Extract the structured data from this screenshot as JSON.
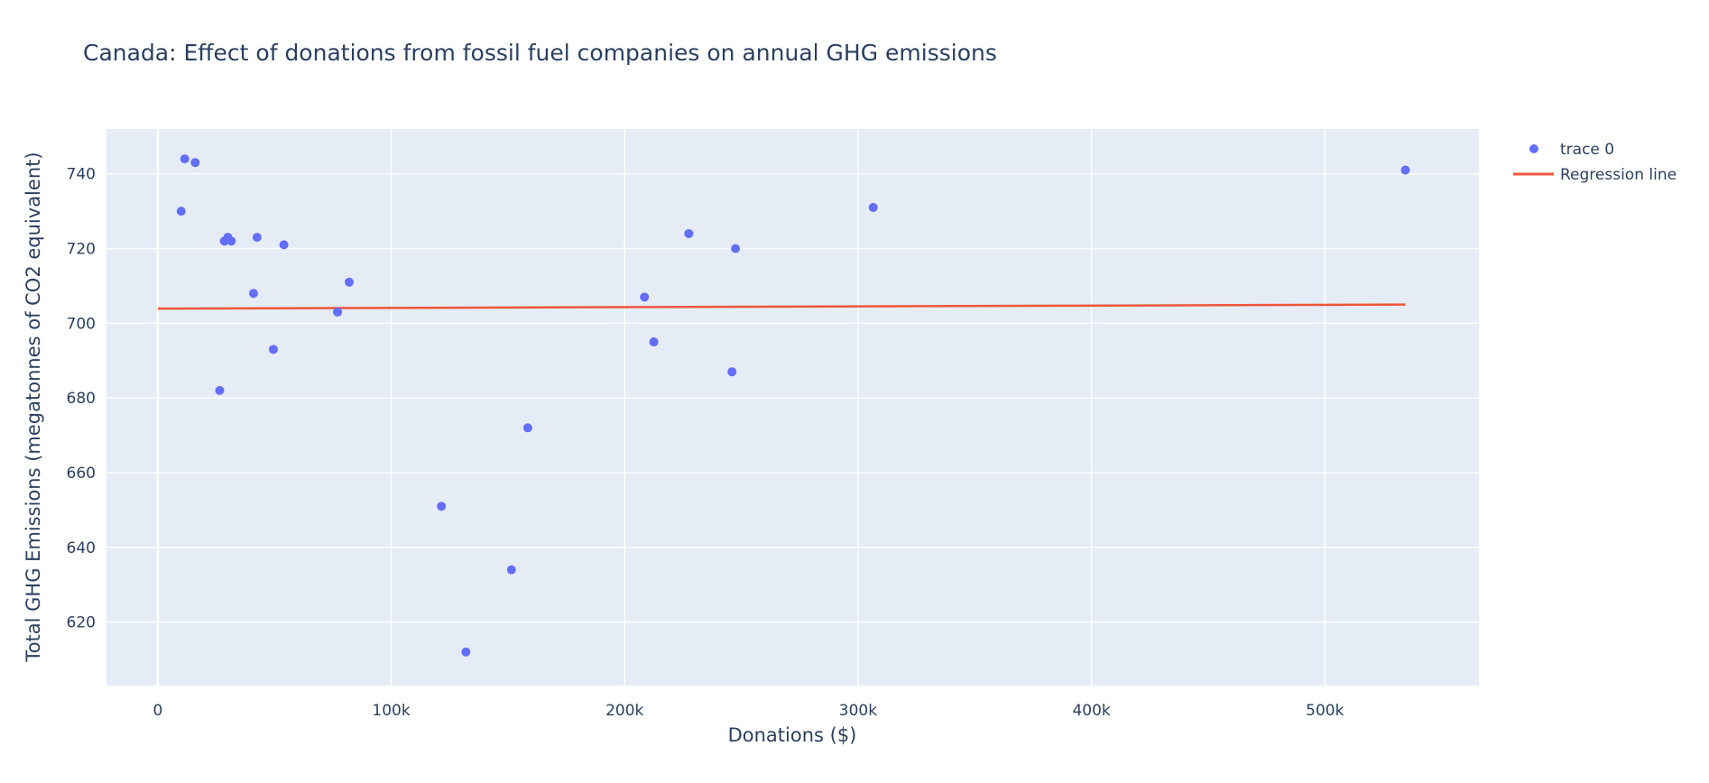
{
  "chart_data": {
    "type": "scatter",
    "title": "Canada: Effect of donations from fossil fuel companies on annual GHG emissions",
    "xlabel": "Donations ($)",
    "ylabel": "Total GHG Emissions (megatonnes of CO2 equivalent)",
    "xlim": [
      -22000,
      566000
    ],
    "ylim": [
      603,
      752
    ],
    "x_ticks": [
      {
        "value": 0,
        "label": "0"
      },
      {
        "value": 100000,
        "label": "100k"
      },
      {
        "value": 200000,
        "label": "200k"
      },
      {
        "value": 300000,
        "label": "300k"
      },
      {
        "value": 400000,
        "label": "400k"
      },
      {
        "value": 500000,
        "label": "500k"
      }
    ],
    "y_ticks": [
      {
        "value": 620,
        "label": "620"
      },
      {
        "value": 640,
        "label": "640"
      },
      {
        "value": 660,
        "label": "660"
      },
      {
        "value": 680,
        "label": "680"
      },
      {
        "value": 700,
        "label": "700"
      },
      {
        "value": 720,
        "label": "720"
      },
      {
        "value": 740,
        "label": "740"
      }
    ],
    "grid": true,
    "legend_position": "top-right",
    "series": [
      {
        "name": "trace 0",
        "mode": "markers",
        "color": "#636efa",
        "points": [
          {
            "x": 10000,
            "y": 730
          },
          {
            "x": 11500,
            "y": 744
          },
          {
            "x": 16000,
            "y": 743
          },
          {
            "x": 26500,
            "y": 682
          },
          {
            "x": 28500,
            "y": 722
          },
          {
            "x": 30000,
            "y": 723
          },
          {
            "x": 31500,
            "y": 722
          },
          {
            "x": 41000,
            "y": 708
          },
          {
            "x": 42500,
            "y": 723
          },
          {
            "x": 49500,
            "y": 693
          },
          {
            "x": 54000,
            "y": 721
          },
          {
            "x": 77000,
            "y": 703
          },
          {
            "x": 82000,
            "y": 711
          },
          {
            "x": 121500,
            "y": 651
          },
          {
            "x": 132000,
            "y": 612
          },
          {
            "x": 151500,
            "y": 634
          },
          {
            "x": 158500,
            "y": 672
          },
          {
            "x": 208500,
            "y": 707
          },
          {
            "x": 212500,
            "y": 695
          },
          {
            "x": 227500,
            "y": 724
          },
          {
            "x": 246000,
            "y": 687
          },
          {
            "x": 247500,
            "y": 720
          },
          {
            "x": 306500,
            "y": 731
          },
          {
            "x": 534500,
            "y": 741
          }
        ]
      },
      {
        "name": "Regression line",
        "mode": "lines",
        "color": "#ef553b",
        "points": [
          {
            "x": 0,
            "y": 703.9
          },
          {
            "x": 534500,
            "y": 705.0
          }
        ]
      }
    ]
  }
}
